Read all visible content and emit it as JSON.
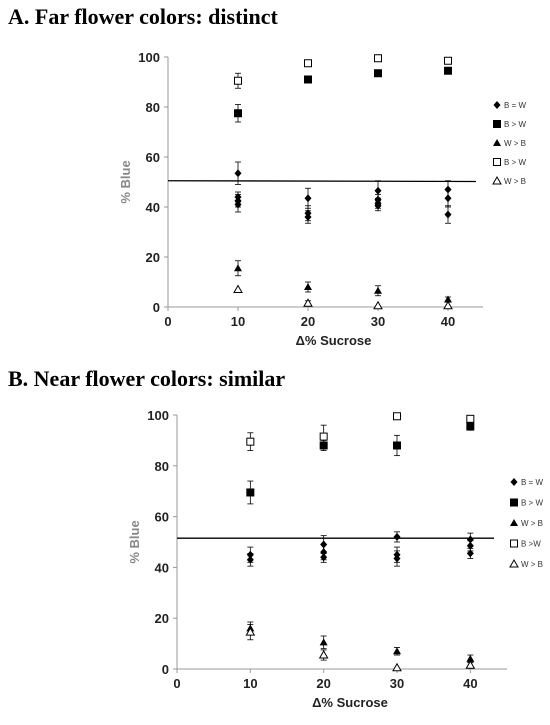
{
  "chart_data": [
    {
      "type": "scatter",
      "title": "A. Far flower colors: distinct",
      "xlabel": "Δ%   Sucrose",
      "ylabel": "% Blue",
      "xlim": [
        0,
        45
      ],
      "ylim": [
        0,
        100
      ],
      "xticks": [
        0,
        10,
        20,
        30,
        40
      ],
      "yticks": [
        0,
        20,
        40,
        60,
        80,
        100
      ],
      "grid": false,
      "legend_position": "right",
      "reference_line": {
        "y_start": 50.5,
        "y_end": 50.2
      },
      "series": [
        {
          "name": "B = W",
          "marker": "diamond-filled",
          "points": [
            {
              "x": 10,
              "y": 53.5,
              "err": 4.5
            },
            {
              "x": 10,
              "y": 44,
              "err": 2
            },
            {
              "x": 10,
              "y": 42.5,
              "err": 2.5
            },
            {
              "x": 10,
              "y": 41,
              "err": 3
            },
            {
              "x": 20,
              "y": 43.5,
              "err": 4
            },
            {
              "x": 20,
              "y": 37.5,
              "err": 3
            },
            {
              "x": 20,
              "y": 36,
              "err": 2.5
            },
            {
              "x": 30,
              "y": 46.5,
              "err": 4
            },
            {
              "x": 30,
              "y": 43,
              "err": 2
            },
            {
              "x": 30,
              "y": 41.5,
              "err": 2
            },
            {
              "x": 30,
              "y": 40.5,
              "err": 2
            },
            {
              "x": 40,
              "y": 47,
              "err": 3.5
            },
            {
              "x": 40,
              "y": 43.5,
              "err": 3.5
            },
            {
              "x": 40,
              "y": 37,
              "err": 3.5
            }
          ]
        },
        {
          "name": "B > W",
          "marker": "square-filled",
          "points": [
            {
              "x": 10,
              "y": 77.5,
              "err": 3.5
            },
            {
              "x": 20,
              "y": 91,
              "err": 1
            },
            {
              "x": 30,
              "y": 93.5,
              "err": 1
            },
            {
              "x": 40,
              "y": 94.5,
              "err": 1
            }
          ]
        },
        {
          "name": "W > B",
          "marker": "triangle-filled",
          "points": [
            {
              "x": 10,
              "y": 15.5,
              "err": 3
            },
            {
              "x": 20,
              "y": 8,
              "err": 2
            },
            {
              "x": 30,
              "y": 6.5,
              "err": 2
            },
            {
              "x": 40,
              "y": 3,
              "err": 1
            }
          ]
        },
        {
          "name": "B > W",
          "marker": "square-open",
          "points": [
            {
              "x": 10,
              "y": 90.5,
              "err": 3
            },
            {
              "x": 20,
              "y": 97.5,
              "err": 0
            },
            {
              "x": 30,
              "y": 99.5,
              "err": 0
            },
            {
              "x": 40,
              "y": 98.5,
              "err": 0
            }
          ]
        },
        {
          "name": "W > B",
          "marker": "triangle-open",
          "points": [
            {
              "x": 10,
              "y": 7,
              "err": 0
            },
            {
              "x": 20,
              "y": 1.5,
              "err": 1
            },
            {
              "x": 30,
              "y": 0.5,
              "err": 0
            },
            {
              "x": 40,
              "y": 0.5,
              "err": 0
            }
          ]
        }
      ]
    },
    {
      "type": "scatter",
      "title": "B. Near flower colors: similar",
      "xlabel": "Δ%   Sucrose",
      "ylabel": "% Blue",
      "xlim": [
        0,
        45
      ],
      "ylim": [
        0,
        100
      ],
      "xticks": [
        0,
        10,
        20,
        30,
        40
      ],
      "yticks": [
        0,
        20,
        40,
        60,
        80,
        100
      ],
      "grid": false,
      "legend_position": "right",
      "reference_line": {
        "y_start": 51.5,
        "y_end": 51.5
      },
      "series": [
        {
          "name": "B = W",
          "marker": "diamond-filled",
          "points": [
            {
              "x": 10,
              "y": 45,
              "err": 3
            },
            {
              "x": 10,
              "y": 43,
              "err": 2.5
            },
            {
              "x": 20,
              "y": 49,
              "err": 3.5
            },
            {
              "x": 20,
              "y": 46,
              "err": 3
            },
            {
              "x": 20,
              "y": 44,
              "err": 2
            },
            {
              "x": 30,
              "y": 52,
              "err": 2
            },
            {
              "x": 30,
              "y": 45,
              "err": 3
            },
            {
              "x": 30,
              "y": 43.5,
              "err": 3
            },
            {
              "x": 40,
              "y": 51,
              "err": 2.5
            },
            {
              "x": 40,
              "y": 48.5,
              "err": 2
            },
            {
              "x": 40,
              "y": 45.5,
              "err": 2
            }
          ]
        },
        {
          "name": "B > W",
          "marker": "square-filled",
          "points": [
            {
              "x": 10,
              "y": 69.5,
              "err": 4.5
            },
            {
              "x": 20,
              "y": 88,
              "err": 2
            },
            {
              "x": 30,
              "y": 88,
              "err": 4
            },
            {
              "x": 40,
              "y": 95.5,
              "err": 1.5
            }
          ]
        },
        {
          "name": "W > B",
          "marker": "triangle-filled",
          "points": [
            {
              "x": 10,
              "y": 16,
              "err": 2.5
            },
            {
              "x": 20,
              "y": 10.5,
              "err": 2.5
            },
            {
              "x": 30,
              "y": 7,
              "err": 1.5
            },
            {
              "x": 40,
              "y": 4,
              "err": 1.5
            }
          ]
        },
        {
          "name": "B >W",
          "marker": "square-open",
          "points": [
            {
              "x": 10,
              "y": 89.5,
              "err": 3.5
            },
            {
              "x": 20,
              "y": 91.5,
              "err": 4.5
            },
            {
              "x": 30,
              "y": 99.5,
              "err": 0
            },
            {
              "x": 40,
              "y": 98.5,
              "err": 0
            }
          ]
        },
        {
          "name": "W > B",
          "marker": "triangle-open",
          "points": [
            {
              "x": 10,
              "y": 14.5,
              "err": 3
            },
            {
              "x": 20,
              "y": 5.5,
              "err": 2
            },
            {
              "x": 30,
              "y": 0.5,
              "err": 0
            },
            {
              "x": 40,
              "y": 1.5,
              "err": 1
            }
          ]
        }
      ]
    }
  ]
}
